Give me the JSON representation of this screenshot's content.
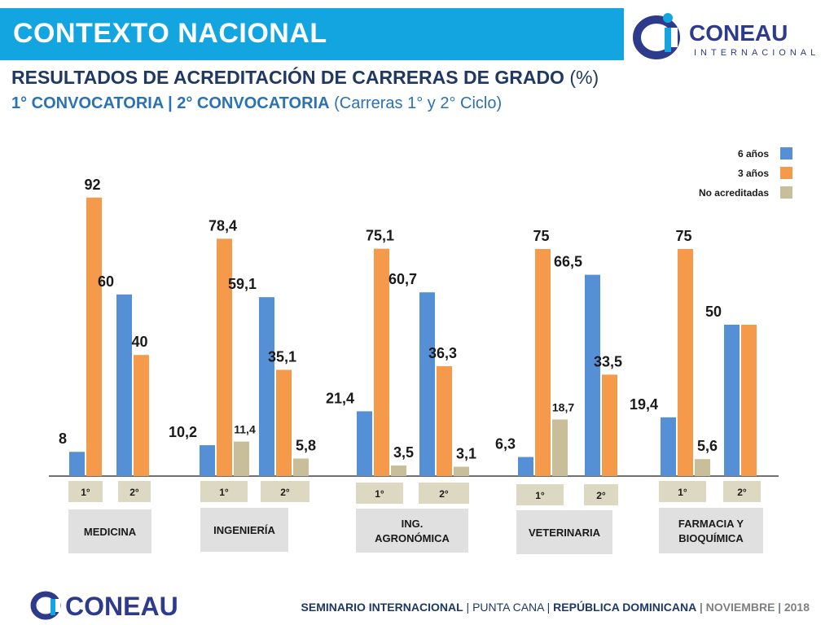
{
  "header": {
    "title": "CONTEXTO NACIONAL",
    "subtitle_bold": "RESULTADOS DE ACREDITACIÓN DE CARRERAS DE GRADO",
    "subtitle_rest": " (%)",
    "subtitle2_bold": "1° CONVOCATORIA | 2° CONVOCATORIA",
    "subtitle2_rest": " (Carreras 1° y 2° Ciclo)"
  },
  "logo": {
    "name": "CONEAU",
    "sub": "INTERNACIONAL"
  },
  "footer": {
    "logo_text": "CONEAU",
    "part1": "SEMINARIO INTERNACIONAL",
    "sep1": " | ",
    "part2": "PUNTA CANA",
    "sep2": " | ",
    "part3": "REPÚBLICA DOMINICANA",
    "sep3": " | ",
    "part4": "NOVIEMBRE",
    "sep4": " | ",
    "part5": "2018"
  },
  "colors": {
    "six": "#5590d6",
    "three": "#f59a4a",
    "none": "#c8bf9a",
    "title_bg": "#13a5e0",
    "navy": "#1f3864",
    "label_bg": "#e0e0e0",
    "conv_bg": "#ddd8c2"
  },
  "chart_data": {
    "type": "bar",
    "title": "RESULTADOS DE ACREDITACIÓN DE CARRERAS DE GRADO (%)",
    "ylim": [
      0,
      100
    ],
    "grid": false,
    "legend_position": "top-right",
    "legend": [
      "6 años",
      "3 años",
      "No acreditadas"
    ],
    "groups": [
      {
        "label": "MEDICINA",
        "convocatorias": [
          {
            "label": "1°",
            "values": {
              "6 años": 8,
              "3 años": 92
            },
            "labels": {
              "6 años": "8",
              "3 años": "92"
            }
          },
          {
            "label": "2°",
            "values": {
              "6 años": 60,
              "3 años": 40
            },
            "labels": {
              "6 años": "60",
              "3 años": "40"
            }
          }
        ]
      },
      {
        "label": "INGENIERÍA",
        "convocatorias": [
          {
            "label": "1°",
            "values": {
              "6 años": 10.2,
              "3 años": 78.4,
              "No acreditadas": 11.4
            },
            "labels": {
              "6 años": "10,2",
              "3 años": "78,4",
              "No acreditadas": "11,4"
            }
          },
          {
            "label": "2°",
            "values": {
              "6 años": 59.1,
              "3 años": 35.1,
              "No acreditadas": 5.8
            },
            "labels": {
              "6 años": "59,1",
              "3 años": "35,1",
              "No acreditadas": "5,8"
            }
          }
        ]
      },
      {
        "label": "ING. AGRONÓMICA",
        "convocatorias": [
          {
            "label": "1°",
            "values": {
              "6 años": 21.4,
              "3 años": 75.1,
              "No acreditadas": 3.5
            },
            "labels": {
              "6 años": "21,4",
              "3 años": "75,1",
              "No acreditadas": "3,5"
            }
          },
          {
            "label": "2°",
            "values": {
              "6 años": 60.7,
              "3 años": 36.3,
              "No acreditadas": 3.1
            },
            "labels": {
              "6 años": "60,7",
              "3 años": "36,3",
              "No acreditadas": "3,1"
            }
          }
        ]
      },
      {
        "label": "VETERINARIA",
        "convocatorias": [
          {
            "label": "1°",
            "values": {
              "6 años": 6.3,
              "3 años": 75,
              "No acreditadas": 18.7
            },
            "labels": {
              "6 años": "6,3",
              "3 años": "75",
              "No acreditadas": "18,7"
            }
          },
          {
            "label": "2°",
            "values": {
              "6 años": 66.5,
              "3 años": 33.5
            },
            "labels": {
              "6 años": "66,5",
              "3 años": "33,5"
            }
          }
        ]
      },
      {
        "label": "FARMACIA Y BIOQUÍMICA",
        "convocatorias": [
          {
            "label": "1°",
            "values": {
              "6 años": 19.4,
              "3 años": 75,
              "No acreditadas": 5.6
            },
            "labels": {
              "6 años": "19,4",
              "3 años": "75",
              "No acreditadas": "5,6"
            }
          },
          {
            "label": "2°",
            "values": {
              "6 años": 50,
              "3 años": 50
            },
            "labels": {
              "6 años": "50"
            }
          }
        ]
      }
    ]
  }
}
